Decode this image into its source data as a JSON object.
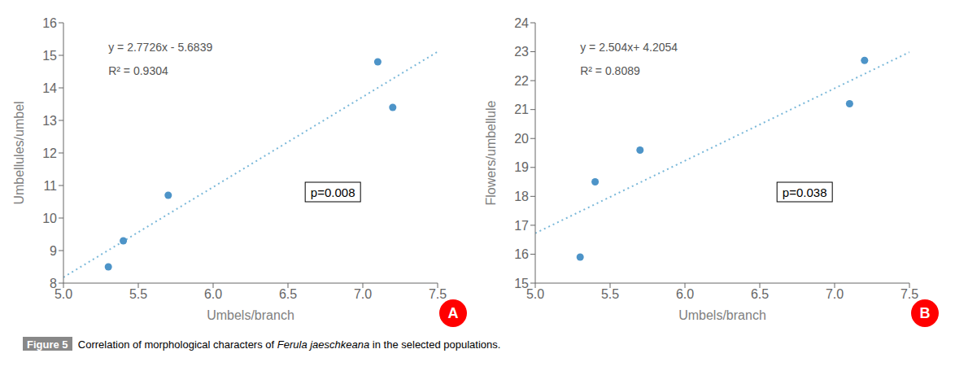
{
  "chart_data": [
    {
      "type": "scatter",
      "x_label": "Umbels/branch",
      "y_label": "Umbellules/umbel",
      "xlim": [
        5.0,
        7.5
      ],
      "ylim": [
        8,
        16
      ],
      "xticks": [
        {
          "value": 5.0,
          "label": "5.0"
        },
        5.5,
        {
          "value": 6.0,
          "label": "6.0"
        },
        6.5,
        {
          "value": 7.0,
          "label": "7.0"
        },
        7.5
      ],
      "yticks": [
        8,
        9,
        10,
        11,
        12,
        13,
        14,
        15,
        16
      ],
      "grid": false,
      "series": [
        {
          "type": "scatter",
          "marker": "circle",
          "color": "#4d94c8",
          "x": [
            5.3,
            5.4,
            5.7,
            7.1,
            7.2
          ],
          "values": [
            8.5,
            9.3,
            10.7,
            14.8,
            13.4
          ]
        },
        {
          "type": "line",
          "line_style": "dotted",
          "color": "#7ab8d9",
          "x": [
            5.0,
            7.5
          ],
          "values": [
            8.1791,
            15.1106
          ]
        }
      ],
      "annotations": [
        "y = 2.7726x - 5.6839",
        "R² = 0.9304",
        "p=0.008"
      ],
      "panel_label": {
        "text": "A",
        "color": "red"
      }
    },
    {
      "type": "scatter",
      "x_label": "Umbels/branch",
      "y_label": "Flowers/umbellule",
      "xlim": [
        5.0,
        7.5
      ],
      "ylim": [
        15,
        24
      ],
      "xticks": [
        {
          "value": 5.0,
          "label": "5.0"
        },
        5.5,
        {
          "value": 6.0,
          "label": "6.0"
        },
        6.5,
        {
          "value": 7.0,
          "label": "7.0"
        },
        7.5
      ],
      "yticks": [
        15,
        16,
        17,
        18,
        19,
        20,
        21,
        22,
        23,
        24
      ],
      "grid": false,
      "series": [
        {
          "type": "scatter",
          "marker": "circle",
          "color": "#4d94c8",
          "x": [
            5.3,
            5.4,
            5.7,
            7.1,
            7.2
          ],
          "values": [
            15.9,
            18.5,
            19.6,
            21.2,
            22.7
          ]
        },
        {
          "type": "line",
          "line_style": "dotted",
          "color": "#7ab8d9",
          "x": [
            5.0,
            7.5
          ],
          "values": [
            16.7254,
            22.9854
          ]
        }
      ],
      "annotations": [
        "y = 2.504x+ 4.2054",
        "R² = 0.8089",
        "p=0.038"
      ],
      "panel_label": {
        "text": "B",
        "color": "red"
      }
    }
  ],
  "caption": [
    "Figure 5",
    "  Correlation of morphological characters of ",
    "Ferula jaeschkeana",
    " in the selected populations."
  ]
}
